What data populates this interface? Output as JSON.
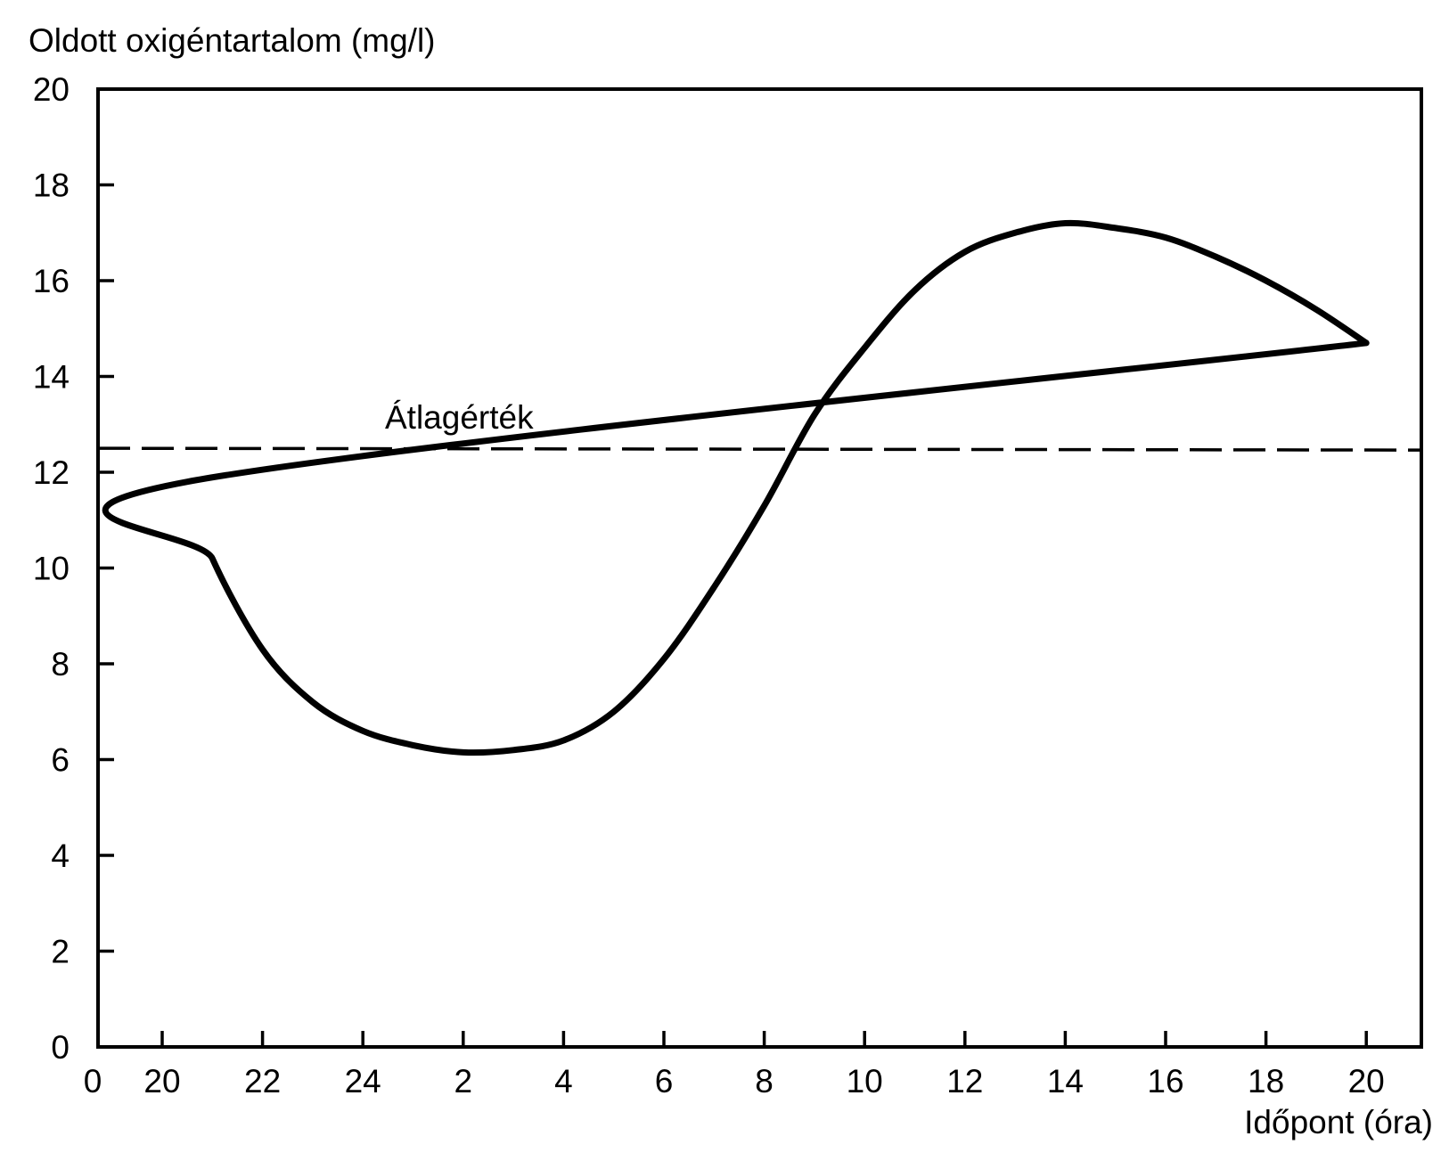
{
  "chart_data": {
    "type": "line",
    "title": "",
    "ylabel": "Oldott oxigéntartalom (mg/l)",
    "xlabel": "Időpont (óra)",
    "ylim": [
      0,
      20
    ],
    "yticks": [
      "0",
      "2",
      "4",
      "6",
      "8",
      "10",
      "12",
      "14",
      "16",
      "18",
      "20"
    ],
    "xorigin_label": "0",
    "xticks": [
      "20",
      "22",
      "24",
      "2",
      "4",
      "6",
      "8",
      "10",
      "12",
      "14",
      "16",
      "18",
      "20"
    ],
    "grid": false,
    "series": [
      {
        "x": [
          "20:00",
          "20:30",
          "21:00",
          "22:00",
          "23:00",
          "24:00",
          "01:00",
          "02:00",
          "03:00",
          "04:00",
          "05:00",
          "06:00",
          "07:00",
          "08:00",
          "09:00",
          "10:00",
          "11:00",
          "12:00",
          "13:00",
          "14:00",
          "15:00",
          "16:00",
          "17:00",
          "18:00",
          "19:00",
          "20:00"
        ],
        "y": [
          14.7,
          11.8,
          10.2,
          8.3,
          7.2,
          6.6,
          6.3,
          6.15,
          6.2,
          6.4,
          7.0,
          8.1,
          9.6,
          11.3,
          13.2,
          14.6,
          15.8,
          16.6,
          17.0,
          17.2,
          17.1,
          16.9,
          16.5,
          16.0,
          15.4,
          14.7
        ]
      }
    ],
    "reference_line": {
      "y": 12.5,
      "style": "dashed",
      "label": "Átlagérték"
    }
  }
}
